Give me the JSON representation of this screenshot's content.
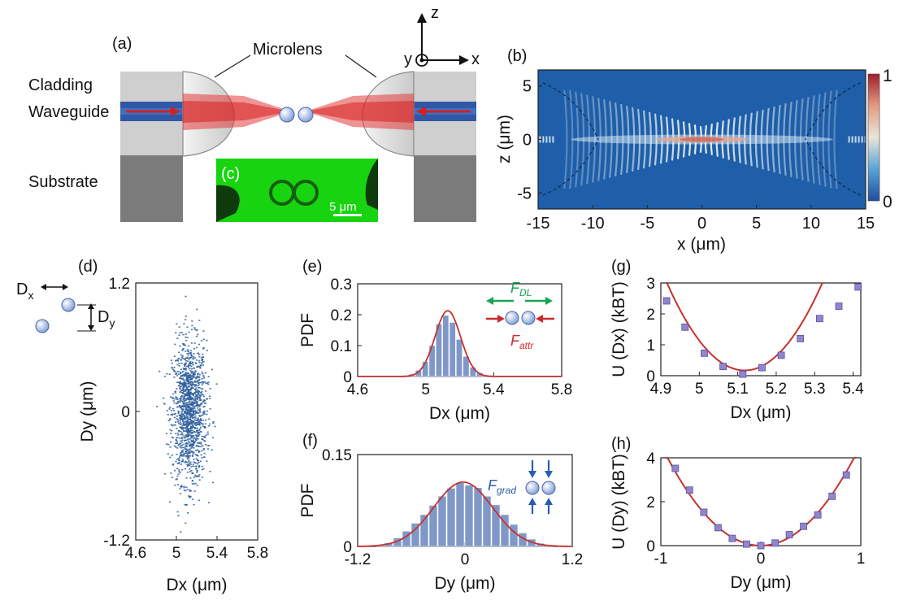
{
  "colors": {
    "cladding": "#c8c8c8",
    "waveguide": "#2f58a6",
    "substrate": "#7b7b7b",
    "beam": "#dd2a2a",
    "green": "#12d40c",
    "bar": "#7f98c9",
    "fit": "#c4322e",
    "scatter": "#2f5f9e",
    "marker": "#8f86cc",
    "field_low": "#1f5ea8",
    "field_high": "#c0302f",
    "force_green": "#19a356",
    "force_red": "#cc2a2a",
    "force_blue": "#2a5db0"
  },
  "panel_a": {
    "label": "(a)",
    "microlens": "Microlens",
    "cladding": "Cladding",
    "waveguide": "Waveguide",
    "substrate": "Substrate",
    "axis_z": "z",
    "axis_y": "y",
    "axis_x": "x"
  },
  "panel_c": {
    "label": "(c)",
    "scale": "5 μm"
  },
  "panel_d": {
    "label": "(d)",
    "dx_label": "D",
    "dx_sub": "x",
    "dy_label": "D",
    "dy_sub": "y"
  },
  "panel_e": {
    "force_dl": "F",
    "force_dl_sub": "DL",
    "force_attr": "F",
    "force_attr_sub": "attr"
  },
  "panel_f": {
    "force_grad": "F",
    "force_grad_sub": "grad"
  },
  "chart_data": [
    {
      "id": "b",
      "label": "(b)",
      "type": "heatmap",
      "xlabel": "x (μm)",
      "ylabel": "z (μm)",
      "xlim": [
        -15,
        15
      ],
      "ylim": [
        -6.5,
        6.5
      ],
      "xticks": [
        -15,
        -10,
        -5,
        0,
        5,
        10,
        15
      ],
      "yticks": [
        5,
        0,
        -5
      ],
      "colorbar": {
        "min": 0,
        "max": 1,
        "ticks": [
          "1",
          "0"
        ]
      }
    },
    {
      "id": "d",
      "label": "(d)",
      "type": "scatter",
      "xlabel": "Dx (μm)",
      "ylabel": "Dy (μm)",
      "xlim": [
        4.6,
        5.8
      ],
      "ylim": [
        -1.2,
        1.2
      ],
      "xticks": [
        4.6,
        5,
        5.4,
        5.8
      ],
      "yticks": [
        1.2,
        0,
        -1.2
      ],
      "x_center": 5.12,
      "x_std": 0.085,
      "y_center": 0.0,
      "y_std": 0.33
    },
    {
      "id": "e",
      "label": "(e)",
      "type": "bar",
      "xlabel": "Dx (μm)",
      "ylabel": "PDF",
      "xlim": [
        4.6,
        5.8
      ],
      "ylim": [
        0,
        0.3
      ],
      "xticks": [
        4.6,
        5,
        5.4,
        5.8
      ],
      "yticks": [
        0.3,
        0.2,
        0.1,
        0
      ],
      "bin_width": 0.04,
      "bin_centers": [
        4.88,
        4.92,
        4.96,
        5.0,
        5.04,
        5.08,
        5.12,
        5.16,
        5.2,
        5.24,
        5.28,
        5.32,
        5.36
      ],
      "values": [
        0.002,
        0.008,
        0.02,
        0.048,
        0.1,
        0.17,
        0.198,
        0.175,
        0.12,
        0.065,
        0.03,
        0.012,
        0.004
      ],
      "fit": {
        "mean": 5.13,
        "std": 0.075,
        "peak": 0.213
      }
    },
    {
      "id": "f",
      "label": "(f)",
      "type": "bar",
      "xlabel": "Dy (μm)",
      "ylabel": "PDF",
      "xlim": [
        -1.2,
        1.2
      ],
      "ylim": [
        0,
        0.15
      ],
      "xticks": [
        -1.2,
        0,
        1.2
      ],
      "yticks": [
        0.15,
        0
      ],
      "bin_width": 0.1,
      "bin_centers": [
        -0.95,
        -0.85,
        -0.75,
        -0.65,
        -0.55,
        -0.45,
        -0.35,
        -0.25,
        -0.15,
        -0.05,
        0.05,
        0.15,
        0.25,
        0.35,
        0.45,
        0.55,
        0.65,
        0.75,
        0.85,
        0.95
      ],
      "values": [
        0.002,
        0.006,
        0.014,
        0.025,
        0.038,
        0.052,
        0.067,
        0.082,
        0.095,
        0.104,
        0.1,
        0.096,
        0.082,
        0.068,
        0.052,
        0.036,
        0.022,
        0.012,
        0.005,
        0.002
      ],
      "fit": {
        "mean": -0.02,
        "std": 0.33,
        "peak": 0.105
      }
    },
    {
      "id": "g",
      "label": "(g)",
      "type": "scatter",
      "xlabel": "Dx (μm)",
      "ylabel": "U (Dx) (kBT)",
      "xlim": [
        4.9,
        5.42
      ],
      "ylim": [
        0,
        3
      ],
      "xticks": [
        4.9,
        5,
        5.1,
        5.2,
        5.3,
        5.4
      ],
      "yticks": [
        3,
        2,
        1,
        0
      ],
      "x": [
        4.915,
        4.963,
        5.013,
        5.062,
        5.113,
        5.163,
        5.213,
        5.263,
        5.313,
        5.363,
        5.413
      ],
      "y": [
        2.42,
        1.57,
        0.73,
        0.3,
        0.05,
        0.26,
        0.66,
        1.2,
        1.85,
        2.25,
        2.87
      ],
      "fit": {
        "type": "quadratic",
        "vertex_x": 5.118,
        "vertex_y": 0.17,
        "a": 69.4
      }
    },
    {
      "id": "h",
      "label": "(h)",
      "type": "scatter",
      "xlabel": "Dy (μm)",
      "ylabel": "U (Dy) (kBT)",
      "xlim": [
        -1,
        1
      ],
      "ylim": [
        0,
        4
      ],
      "xticks": [
        -1,
        0,
        1
      ],
      "yticks": [
        4,
        2,
        0
      ],
      "x": [
        -0.855,
        -0.713,
        -0.57,
        -0.428,
        -0.285,
        -0.143,
        0.0,
        0.143,
        0.285,
        0.428,
        0.57,
        0.713,
        0.855
      ],
      "y": [
        3.52,
        2.53,
        1.52,
        0.82,
        0.33,
        0.07,
        0.0,
        0.12,
        0.5,
        0.88,
        1.4,
        2.25,
        3.22
      ],
      "fit": {
        "type": "quadratic",
        "vertex_x": 0.0,
        "vertex_y": 0.0,
        "a": 4.6
      }
    }
  ]
}
